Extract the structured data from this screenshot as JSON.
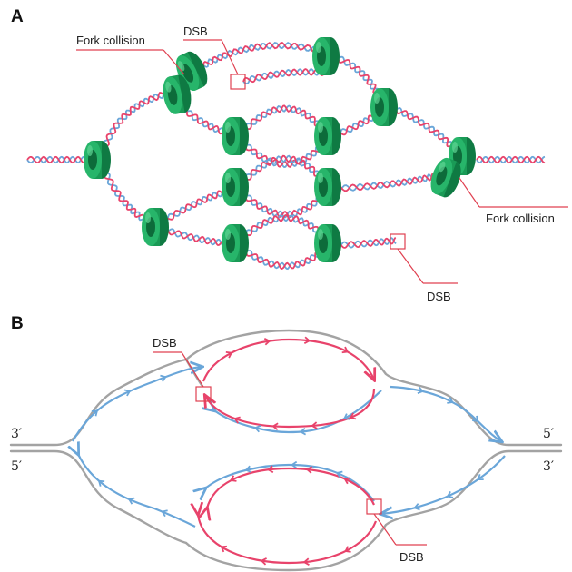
{
  "panel_a": {
    "letter": "A",
    "label_fork_collision_top": "Fork collision",
    "label_dsb_top": "DSB",
    "label_fork_collision_right": "Fork collision",
    "label_dsb_bottom": "DSB"
  },
  "panel_b": {
    "letter": "B",
    "label_dsb_top": "DSB",
    "label_dsb_bottom": "DSB",
    "end_top_left": "3′",
    "end_bottom_left": "5′",
    "end_top_right": "5′",
    "end_bottom_right": "3′"
  },
  "colors": {
    "strand_pink": "#e8436b",
    "strand_blue": "#6aa6d9",
    "parental_gray": "#9a9a9a",
    "helicase_green": "#1a9a56",
    "callout_red": "#e04050"
  }
}
